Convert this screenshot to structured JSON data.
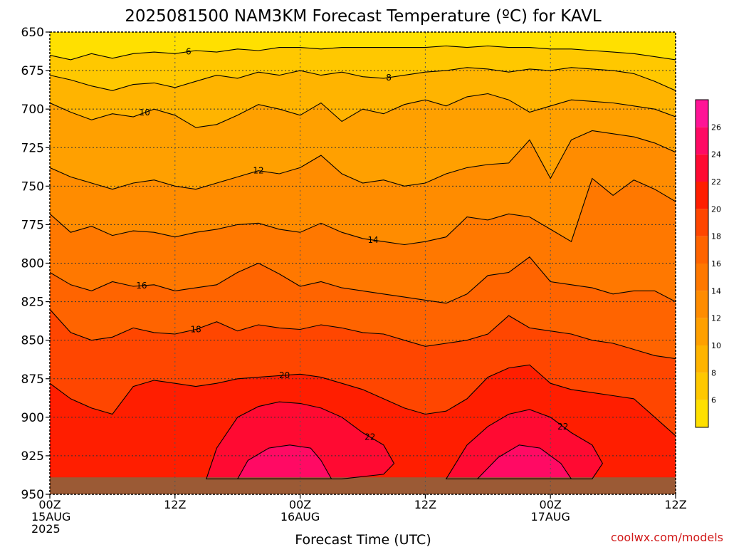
{
  "chart_data": {
    "type": "heatmap",
    "title": "2025081500 NAM3KM Forecast Temperature (ºC) for KAVL",
    "xlabel": "Forecast Time (UTC)",
    "ylabel": "",
    "x_ticks": [
      {
        "hours": 0,
        "lines": [
          "00Z",
          "15AUG",
          "2025"
        ]
      },
      {
        "hours": 12,
        "lines": [
          "12Z"
        ]
      },
      {
        "hours": 24,
        "lines": [
          "00Z",
          "16AUG"
        ]
      },
      {
        "hours": 36,
        "lines": [
          "12Z"
        ]
      },
      {
        "hours": 48,
        "lines": [
          "00Z",
          "17AUG"
        ]
      },
      {
        "hours": 60,
        "lines": [
          "12Z"
        ]
      }
    ],
    "xlim": [
      0,
      60
    ],
    "y_ticks": [
      650,
      675,
      700,
      725,
      750,
      775,
      800,
      825,
      850,
      875,
      900,
      925,
      950
    ],
    "ylim": [
      650,
      950
    ],
    "surface_pressure_hpa": 939,
    "colorbar": {
      "ticks": [
        6,
        8,
        10,
        12,
        14,
        16,
        18,
        20,
        22,
        24,
        26
      ],
      "levels": [
        4,
        6,
        8,
        10,
        12,
        14,
        16,
        18,
        20,
        22,
        24,
        26,
        28
      ],
      "colors": [
        "#ffe000",
        "#ffc800",
        "#ffb400",
        "#ffa000",
        "#ff8c00",
        "#ff7800",
        "#ff6400",
        "#ff4600",
        "#ff1e00",
        "#ff0a32",
        "#ff0a64",
        "#ff1496"
      ]
    },
    "contours": [
      {
        "level": 6,
        "label": "6",
        "label_at": 13.3,
        "points": [
          [
            0,
            665
          ],
          [
            2,
            668
          ],
          [
            4,
            664
          ],
          [
            6,
            667
          ],
          [
            8,
            664
          ],
          [
            10,
            663
          ],
          [
            12,
            664
          ],
          [
            14,
            662
          ],
          [
            16,
            663
          ],
          [
            18,
            661
          ],
          [
            20,
            662
          ],
          [
            22,
            660
          ],
          [
            24,
            660
          ],
          [
            26,
            661
          ],
          [
            28,
            660
          ],
          [
            30,
            660
          ],
          [
            32,
            660
          ],
          [
            34,
            660
          ],
          [
            36,
            660
          ],
          [
            38,
            659
          ],
          [
            40,
            660
          ],
          [
            42,
            659
          ],
          [
            44,
            660
          ],
          [
            46,
            660
          ],
          [
            48,
            661
          ],
          [
            50,
            661
          ],
          [
            52,
            662
          ],
          [
            54,
            663
          ],
          [
            56,
            664
          ],
          [
            58,
            666
          ],
          [
            60,
            668
          ]
        ]
      },
      {
        "level": 8,
        "label": "8",
        "label_at": 32.5,
        "points": [
          [
            0,
            678
          ],
          [
            2,
            681
          ],
          [
            4,
            685
          ],
          [
            6,
            688
          ],
          [
            8,
            684
          ],
          [
            10,
            683
          ],
          [
            12,
            686
          ],
          [
            14,
            682
          ],
          [
            16,
            678
          ],
          [
            18,
            680
          ],
          [
            20,
            676
          ],
          [
            22,
            678
          ],
          [
            24,
            675
          ],
          [
            26,
            678
          ],
          [
            28,
            676
          ],
          [
            30,
            679
          ],
          [
            32,
            680
          ],
          [
            34,
            678
          ],
          [
            36,
            676
          ],
          [
            38,
            675
          ],
          [
            40,
            673
          ],
          [
            42,
            674
          ],
          [
            44,
            676
          ],
          [
            46,
            674
          ],
          [
            48,
            675
          ],
          [
            50,
            673
          ],
          [
            52,
            674
          ],
          [
            54,
            675
          ],
          [
            56,
            677
          ],
          [
            58,
            682
          ],
          [
            60,
            688
          ]
        ]
      },
      {
        "level": 10,
        "label": "10",
        "label_at": 9.1,
        "points": [
          [
            0,
            696
          ],
          [
            2,
            702
          ],
          [
            4,
            707
          ],
          [
            6,
            703
          ],
          [
            8,
            705
          ],
          [
            10,
            700
          ],
          [
            12,
            704
          ],
          [
            14,
            712
          ],
          [
            16,
            710
          ],
          [
            18,
            704
          ],
          [
            20,
            697
          ],
          [
            22,
            700
          ],
          [
            24,
            704
          ],
          [
            26,
            696
          ],
          [
            28,
            708
          ],
          [
            30,
            700
          ],
          [
            32,
            703
          ],
          [
            34,
            697
          ],
          [
            36,
            694
          ],
          [
            38,
            698
          ],
          [
            40,
            692
          ],
          [
            42,
            690
          ],
          [
            44,
            694
          ],
          [
            46,
            702
          ],
          [
            48,
            698
          ],
          [
            50,
            694
          ],
          [
            52,
            695
          ],
          [
            54,
            696
          ],
          [
            56,
            698
          ],
          [
            58,
            700
          ],
          [
            60,
            705
          ]
        ]
      },
      {
        "level": 12,
        "label": "12",
        "label_at": 20.0,
        "points": [
          [
            0,
            738
          ],
          [
            2,
            744
          ],
          [
            4,
            748
          ],
          [
            6,
            752
          ],
          [
            8,
            748
          ],
          [
            10,
            746
          ],
          [
            12,
            750
          ],
          [
            14,
            752
          ],
          [
            16,
            748
          ],
          [
            18,
            744
          ],
          [
            20,
            740
          ],
          [
            22,
            742
          ],
          [
            24,
            738
          ],
          [
            26,
            730
          ],
          [
            28,
            742
          ],
          [
            30,
            748
          ],
          [
            32,
            746
          ],
          [
            34,
            750
          ],
          [
            36,
            748
          ],
          [
            38,
            742
          ],
          [
            40,
            738
          ],
          [
            42,
            736
          ],
          [
            44,
            735
          ],
          [
            46,
            720
          ],
          [
            48,
            745
          ],
          [
            50,
            720
          ],
          [
            52,
            714
          ],
          [
            54,
            716
          ],
          [
            56,
            718
          ],
          [
            58,
            722
          ],
          [
            60,
            728
          ]
        ]
      },
      {
        "level": 14,
        "label": "14",
        "label_at": 31.0,
        "points": [
          [
            0,
            768
          ],
          [
            2,
            780
          ],
          [
            4,
            776
          ],
          [
            6,
            782
          ],
          [
            8,
            779
          ],
          [
            10,
            780
          ],
          [
            12,
            783
          ],
          [
            14,
            780
          ],
          [
            16,
            778
          ],
          [
            18,
            775
          ],
          [
            20,
            774
          ],
          [
            22,
            778
          ],
          [
            24,
            780
          ],
          [
            26,
            774
          ],
          [
            28,
            780
          ],
          [
            30,
            784
          ],
          [
            32,
            786
          ],
          [
            34,
            788
          ],
          [
            36,
            786
          ],
          [
            38,
            783
          ],
          [
            40,
            770
          ],
          [
            42,
            772
          ],
          [
            44,
            768
          ],
          [
            46,
            770
          ],
          [
            48,
            778
          ],
          [
            50,
            786
          ],
          [
            52,
            745
          ],
          [
            54,
            756
          ],
          [
            56,
            746
          ],
          [
            58,
            752
          ],
          [
            60,
            760
          ]
        ]
      },
      {
        "level": 16,
        "label": "16",
        "label_at": 8.8,
        "points": [
          [
            0,
            806
          ],
          [
            2,
            814
          ],
          [
            4,
            818
          ],
          [
            6,
            812
          ],
          [
            8,
            815
          ],
          [
            10,
            814
          ],
          [
            12,
            818
          ],
          [
            14,
            816
          ],
          [
            16,
            814
          ],
          [
            18,
            806
          ],
          [
            20,
            800
          ],
          [
            22,
            807
          ],
          [
            24,
            815
          ],
          [
            26,
            812
          ],
          [
            28,
            816
          ],
          [
            30,
            818
          ],
          [
            32,
            820
          ],
          [
            34,
            822
          ],
          [
            36,
            824
          ],
          [
            38,
            826
          ],
          [
            40,
            820
          ],
          [
            42,
            808
          ],
          [
            44,
            806
          ],
          [
            46,
            796
          ],
          [
            48,
            812
          ],
          [
            50,
            814
          ],
          [
            52,
            816
          ],
          [
            54,
            820
          ],
          [
            56,
            818
          ],
          [
            58,
            818
          ],
          [
            60,
            825
          ]
        ]
      },
      {
        "level": 18,
        "label": "18",
        "label_at": 14.0,
        "points": [
          [
            0,
            830
          ],
          [
            2,
            845
          ],
          [
            4,
            850
          ],
          [
            6,
            848
          ],
          [
            8,
            842
          ],
          [
            10,
            845
          ],
          [
            12,
            846
          ],
          [
            14,
            843
          ],
          [
            16,
            838
          ],
          [
            18,
            844
          ],
          [
            20,
            840
          ],
          [
            22,
            842
          ],
          [
            24,
            843
          ],
          [
            26,
            840
          ],
          [
            28,
            842
          ],
          [
            30,
            845
          ],
          [
            32,
            846
          ],
          [
            34,
            850
          ],
          [
            36,
            854
          ],
          [
            38,
            852
          ],
          [
            40,
            850
          ],
          [
            42,
            846
          ],
          [
            44,
            834
          ],
          [
            46,
            842
          ],
          [
            48,
            844
          ],
          [
            50,
            846
          ],
          [
            52,
            850
          ],
          [
            54,
            852
          ],
          [
            56,
            856
          ],
          [
            58,
            860
          ],
          [
            60,
            862
          ]
        ]
      },
      {
        "level": 20,
        "label": "20",
        "label_at": 22.5,
        "points": [
          [
            0,
            878
          ],
          [
            2,
            888
          ],
          [
            4,
            894
          ],
          [
            6,
            898
          ],
          [
            8,
            880
          ],
          [
            10,
            876
          ],
          [
            12,
            878
          ],
          [
            14,
            880
          ],
          [
            16,
            878
          ],
          [
            18,
            875
          ],
          [
            20,
            874
          ],
          [
            22,
            873
          ],
          [
            24,
            872
          ],
          [
            26,
            874
          ],
          [
            28,
            878
          ],
          [
            30,
            882
          ],
          [
            32,
            888
          ],
          [
            34,
            894
          ],
          [
            36,
            898
          ],
          [
            38,
            896
          ],
          [
            40,
            888
          ],
          [
            42,
            874
          ],
          [
            44,
            868
          ],
          [
            46,
            866
          ],
          [
            48,
            878
          ],
          [
            50,
            882
          ],
          [
            52,
            884
          ],
          [
            54,
            886
          ],
          [
            56,
            888
          ],
          [
            58,
            900
          ],
          [
            60,
            912
          ]
        ]
      },
      {
        "level": 22,
        "label": "22",
        "label_at": 30.7,
        "points": [
          [
            15,
            940
          ],
          [
            16,
            920
          ],
          [
            18,
            900
          ],
          [
            20,
            893
          ],
          [
            22,
            890
          ],
          [
            24,
            891
          ],
          [
            26,
            894
          ],
          [
            28,
            900
          ],
          [
            30,
            910
          ],
          [
            32,
            918
          ],
          [
            33,
            930
          ],
          [
            32,
            937
          ],
          [
            28,
            940
          ]
        ]
      },
      {
        "level": 24,
        "label": "",
        "label_at": -1,
        "points": [
          [
            18,
            940
          ],
          [
            19,
            928
          ],
          [
            21,
            920
          ],
          [
            23,
            918
          ],
          [
            25,
            920
          ],
          [
            26,
            928
          ],
          [
            27,
            940
          ]
        ]
      },
      {
        "level": 22,
        "label": "22",
        "label_at": 49.2,
        "points": [
          [
            38,
            940
          ],
          [
            40,
            918
          ],
          [
            42,
            906
          ],
          [
            44,
            898
          ],
          [
            46,
            895
          ],
          [
            48,
            900
          ],
          [
            50,
            910
          ],
          [
            52,
            918
          ],
          [
            53,
            930
          ],
          [
            52,
            940
          ]
        ]
      },
      {
        "level": 24,
        "label": "",
        "label_at": -1,
        "points": [
          [
            41,
            940
          ],
          [
            43,
            926
          ],
          [
            45,
            918
          ],
          [
            47,
            920
          ],
          [
            49,
            930
          ],
          [
            50,
            940
          ]
        ]
      }
    ],
    "credit": "coolwx.com/models"
  }
}
